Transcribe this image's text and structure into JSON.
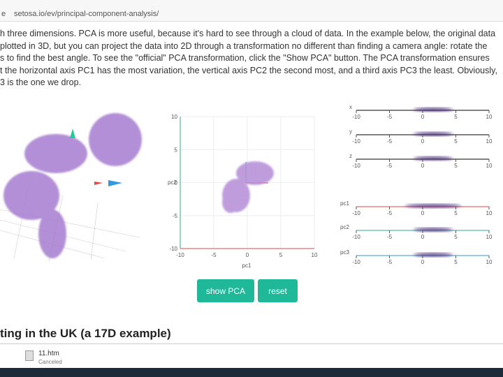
{
  "browser": {
    "scheme": "e",
    "url": "setosa.io/ev/principal-component-analysis/"
  },
  "article": {
    "lines": [
      "h three dimensions. PCA is more useful, because it's hard to see through a cloud of data. In the example below, the original data",
      "plotted in 3D, but you can project the data into 2D through a transformation no different than finding a camera angle: rotate the",
      "s to find the best angle. To see the \"official\" PCA transformation, click the \"Show PCA\" button. The PCA transformation ensures",
      "t the horizontal axis PC1 has the most variation, the vertical axis PC2 the second most, and a third axis PC3 the least. Obviously,",
      "3 is the one we drop."
    ],
    "next_heading": "ting in the UK (a 17D example)"
  },
  "plot2d": {
    "y_ticks": [
      "10",
      "5",
      "0",
      "-5",
      "-10"
    ],
    "x_ticks": [
      "-10",
      "-5",
      "0",
      "5",
      "10"
    ],
    "x_label": "pc1",
    "y_label": "pc2"
  },
  "strips": [
    {
      "label": "x",
      "ticks": [
        "-10",
        "-5",
        "0",
        "5",
        "10"
      ]
    },
    {
      "label": "y",
      "ticks": [
        "-10",
        "-5",
        "0",
        "5",
        "10"
      ]
    },
    {
      "label": "z",
      "ticks": [
        "-10",
        "-5",
        "0",
        "5",
        "10"
      ]
    },
    {
      "label": "pc1",
      "ticks": [
        "-10",
        "-5",
        "0",
        "5",
        "10"
      ]
    },
    {
      "label": "pc2",
      "ticks": [
        "-10",
        "-5",
        "0",
        "5",
        "10"
      ]
    },
    {
      "label": "pc3",
      "ticks": [
        "-10",
        "-5",
        "0",
        "5",
        "10"
      ]
    }
  ],
  "buttons": {
    "show": "show PCA",
    "reset": "reset"
  },
  "download": {
    "file": "11.htm",
    "status": "Canceled"
  }
}
